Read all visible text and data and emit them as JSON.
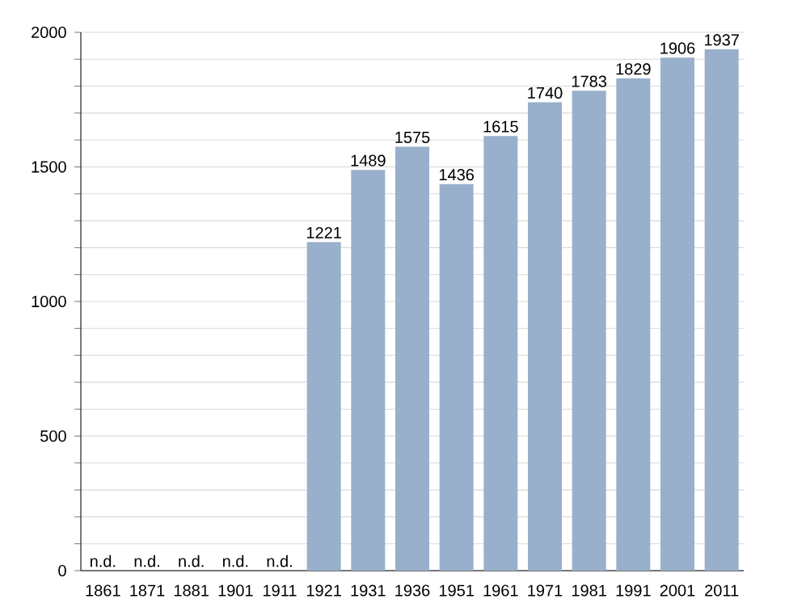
{
  "chart_data": {
    "type": "bar",
    "categories": [
      "1861",
      "1871",
      "1881",
      "1901",
      "1911",
      "1921",
      "1931",
      "1936",
      "1951",
      "1961",
      "1971",
      "1981",
      "1991",
      "2001",
      "2011"
    ],
    "values": [
      null,
      null,
      null,
      null,
      null,
      1221,
      1489,
      1575,
      1436,
      1615,
      1740,
      1783,
      1829,
      1906,
      1937
    ],
    "value_labels": [
      "n.d.",
      "n.d.",
      "n.d.",
      "n.d.",
      "n.d.",
      "1221",
      "1489",
      "1575",
      "1436",
      "1615",
      "1740",
      "1783",
      "1829",
      "1906",
      "1937"
    ],
    "color": "#98b0cc",
    "ylim": [
      0,
      2000
    ],
    "yticks": [
      0,
      {
        "value": 100,
        "label": null
      },
      {
        "value": 200,
        "label": null
      },
      {
        "value": 300,
        "label": null
      },
      {
        "value": 400,
        "label": null
      },
      500,
      {
        "value": 600,
        "label": null
      },
      {
        "value": 700,
        "label": null
      },
      {
        "value": 800,
        "label": null
      },
      {
        "value": 900,
        "label": null
      },
      1000,
      {
        "value": 1100,
        "label": null
      },
      {
        "value": 1200,
        "label": null
      },
      {
        "value": 1300,
        "label": null
      },
      {
        "value": 1400,
        "label": null
      },
      1500,
      {
        "value": 1600,
        "label": null
      },
      {
        "value": 1700,
        "label": null
      },
      {
        "value": 1800,
        "label": null
      },
      {
        "value": 1900,
        "label": null
      },
      2000
    ],
    "grid": "y"
  }
}
